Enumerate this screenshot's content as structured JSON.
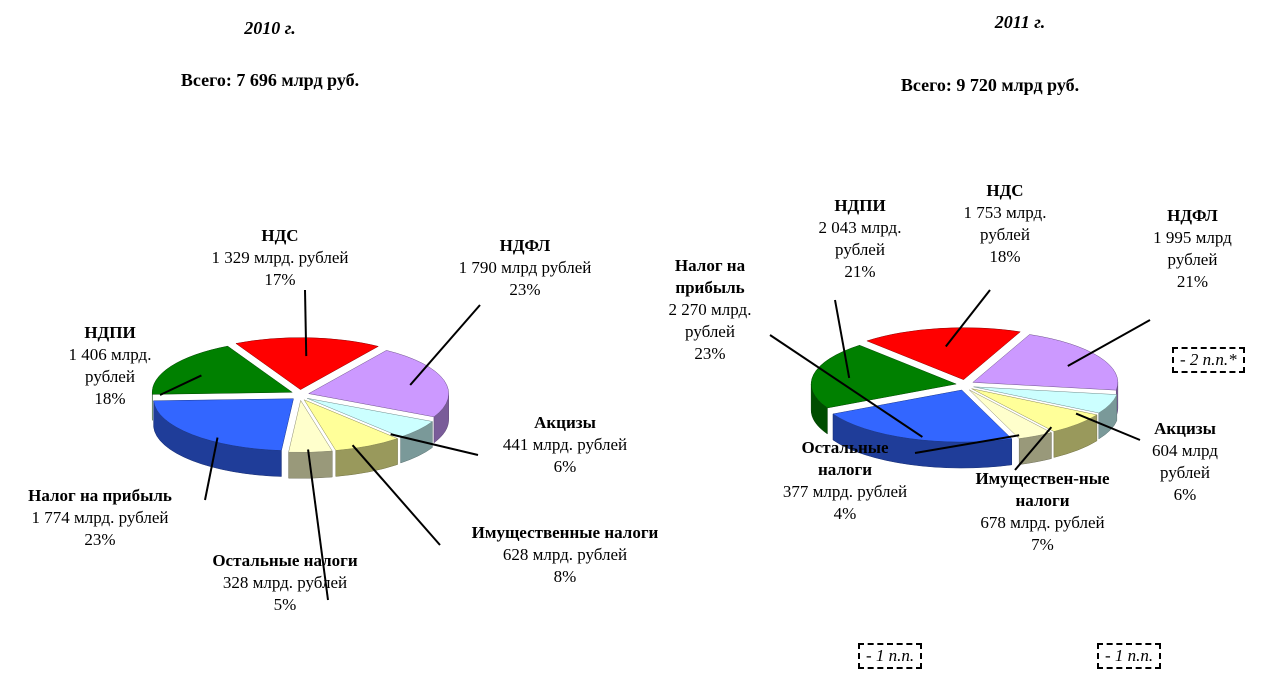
{
  "chart_data": [
    {
      "type": "pie",
      "title": "2010 г.",
      "subtitle": "Всего: 7 696 млрд руб.",
      "categories": [
        "НДС",
        "НДФЛ",
        "Акцизы",
        "Имущественные налоги",
        "Остальные налоги",
        "Налог на прибыль",
        "НДПИ"
      ],
      "values": [
        17,
        23,
        6,
        8,
        5,
        23,
        18
      ],
      "value_labels": [
        "17%",
        "23%",
        "6%",
        "8%",
        "5%",
        "23%",
        "18%"
      ],
      "amounts": [
        1329,
        1790,
        441,
        628,
        328,
        1774,
        1406
      ],
      "amount_labels": [
        "1 329 млрд. рублей",
        "1 790 млрд рублей",
        "441 млрд. рублей",
        "628 млрд. рублей",
        "328 млрд. рублей",
        "1 774 млрд. рублей",
        "1 406 млрд. рублей"
      ],
      "colors": [
        "#ff0000",
        "#cc99ff",
        "#ccffff",
        "#ffff99",
        "#ffffcc",
        "#3366ff",
        "#008000"
      ]
    },
    {
      "type": "pie",
      "title": "2011 г.",
      "subtitle": "Всего: 9 720 млрд руб.",
      "categories": [
        "НДС",
        "НДФЛ",
        "Акцизы",
        "Имуществен-ные налоги",
        "Остальные налоги",
        "Налог на прибыль",
        "НДПИ"
      ],
      "values": [
        18,
        21,
        6,
        7,
        4,
        23,
        21
      ],
      "value_labels": [
        "18%",
        "21%",
        "6%",
        "7%",
        "4%",
        "23%",
        "21%"
      ],
      "amounts": [
        1753,
        1995,
        604,
        678,
        377,
        2270,
        2043
      ],
      "amount_labels": [
        "1 753 млрд. рублей",
        "1 995 млрд рублей",
        "604 млрд рублей",
        "678 млрд. рублей",
        "377 млрд. рублей",
        "2 270 млрд. рублей",
        "2 043 млрд. рублей"
      ],
      "colors": [
        "#ff0000",
        "#cc99ff",
        "#ccffff",
        "#ffff99",
        "#ffffcc",
        "#3366ff",
        "#008000"
      ],
      "annotations": [
        "- 2 п.п.*",
        "- 1 п.п.",
        "- 1 п.п."
      ]
    }
  ]
}
